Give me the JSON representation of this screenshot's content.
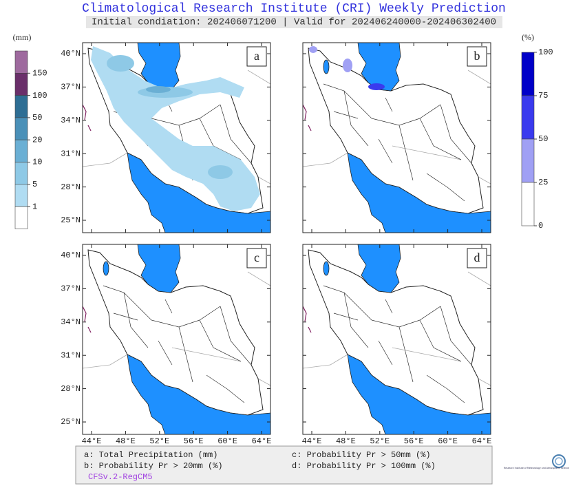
{
  "title": "Climatological Research Institute (CRI) Weekly Prediction",
  "subtitle": "Initial condiation: 202406071200 | Valid for 202406240000-202406302400",
  "precip_legend": {
    "unit": "(mm)",
    "labels": [
      "150",
      "100",
      "50",
      "20",
      "10",
      "5",
      "1"
    ]
  },
  "prob_legend": {
    "unit": "(%)",
    "labels": [
      "100",
      "75",
      "50",
      "25",
      "0"
    ]
  },
  "panels": [
    {
      "label": "a"
    },
    {
      "label": "b"
    },
    {
      "label": "c"
    },
    {
      "label": "d"
    }
  ],
  "lat_labels": [
    "40°N",
    "37°N",
    "34°N",
    "31°N",
    "28°N",
    "25°N"
  ],
  "lon_labels": [
    "44°E",
    "48°E",
    "52°E",
    "56°E",
    "60°E",
    "64°E"
  ],
  "footer": {
    "items": [
      "a: Total Precipitation (mm)",
      "b: Probability Pr > 20mm (%)",
      "c: Probability Pr > 50mm (%)",
      "d: Probability Pr > 100mm (%)"
    ],
    "model": "CFSv.2-RegCM5"
  },
  "logo": {
    "text": "Research Institute of Meteorology and Atmospheric Science"
  }
}
